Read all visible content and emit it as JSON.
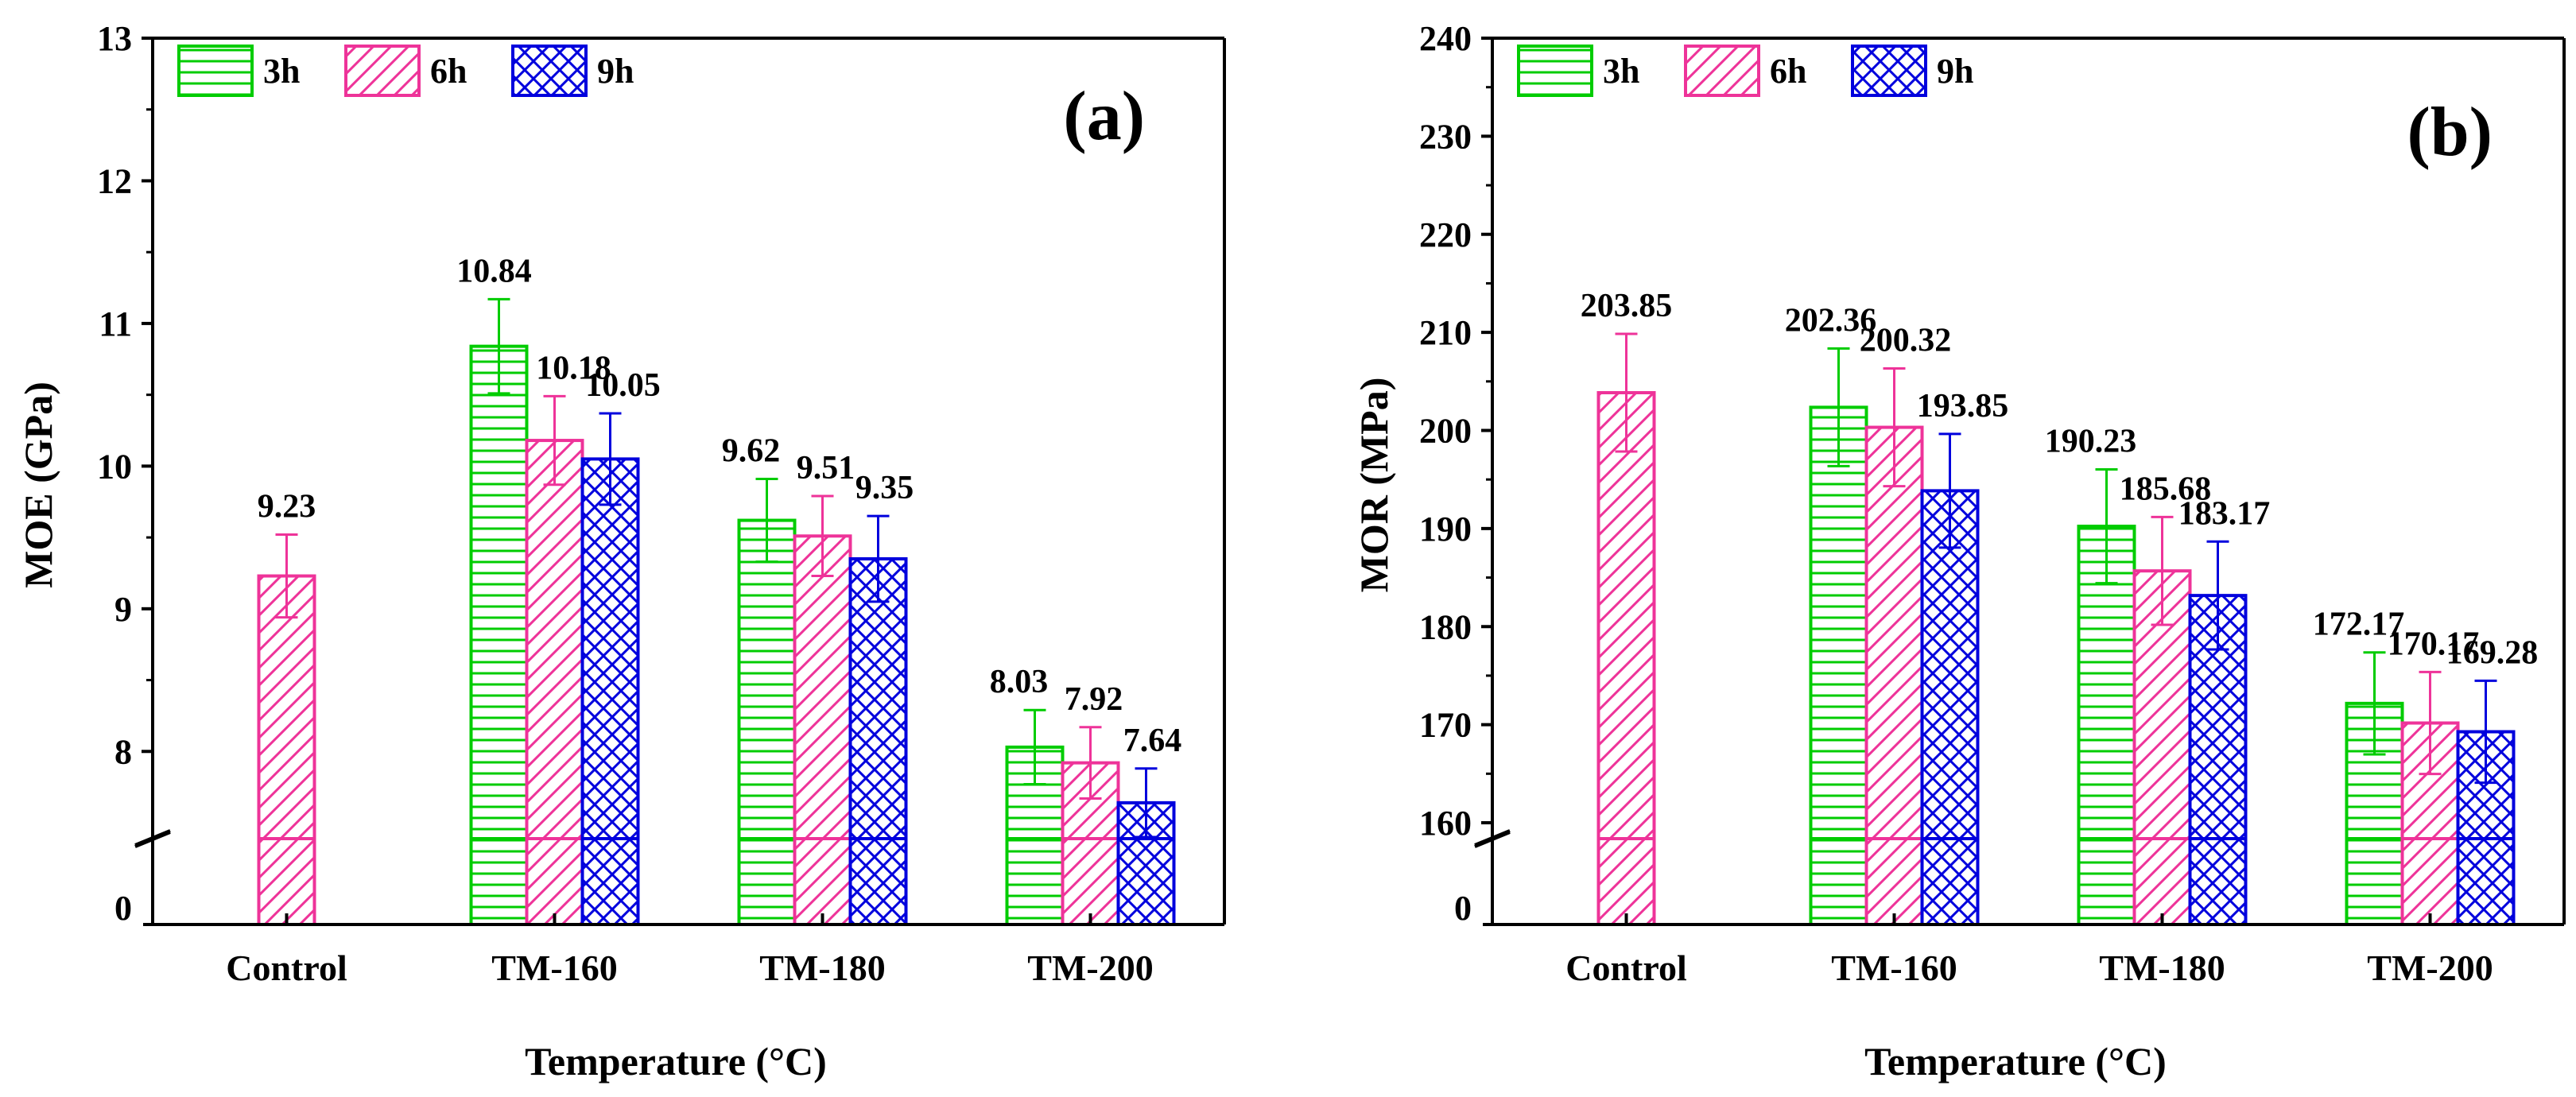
{
  "chart_data": [
    {
      "type": "bar",
      "panel_label": "(a)",
      "xlabel": "Temperature (°C)",
      "ylabel": "MOE (GPa)",
      "categories": [
        "Control",
        "TM-160",
        "TM-180",
        "TM-200"
      ],
      "series": [
        {
          "name": "3h",
          "color": "#00cc00",
          "pattern": "horizontal-lines",
          "values": [
            null,
            10.84,
            9.62,
            8.03
          ],
          "errors": [
            null,
            0.33,
            0.29,
            0.26
          ],
          "labels": [
            null,
            "10.84",
            "9.62",
            "8.03"
          ]
        },
        {
          "name": "6h",
          "color": "#ee3399",
          "pattern": "diagonal-lines",
          "values": [
            9.23,
            10.18,
            9.51,
            7.92
          ],
          "errors": [
            0.29,
            0.31,
            0.28,
            0.25
          ],
          "labels": [
            "9.23",
            "10.18",
            "9.51",
            "7.92"
          ]
        },
        {
          "name": "9h",
          "color": "#0000dd",
          "pattern": "crosshatch",
          "values": [
            null,
            10.05,
            9.35,
            7.64
          ],
          "errors": [
            null,
            0.32,
            0.3,
            0.24
          ],
          "labels": [
            null,
            "10.05",
            "9.35",
            "7.64"
          ]
        }
      ],
      "yticks": [
        "0",
        "8",
        "9",
        "10",
        "11",
        "12",
        "13"
      ],
      "axis_break": {
        "lower": 0,
        "upper": 7.5
      },
      "ylim": [
        7.5,
        13
      ],
      "legend": "top-left",
      "grid": false
    },
    {
      "type": "bar",
      "panel_label": "(b)",
      "xlabel": "Temperature (°C)",
      "ylabel": "MOR (MPa)",
      "categories": [
        "Control",
        "TM-160",
        "TM-180",
        "TM-200"
      ],
      "series": [
        {
          "name": "3h",
          "color": "#00cc00",
          "pattern": "horizontal-lines",
          "values": [
            null,
            202.36,
            190.23,
            172.17
          ],
          "errors": [
            null,
            6.0,
            5.8,
            5.2
          ],
          "labels": [
            null,
            "202.36",
            "190.23",
            "172.17"
          ]
        },
        {
          "name": "6h",
          "color": "#ee3399",
          "pattern": "diagonal-lines",
          "values": [
            203.85,
            200.32,
            185.68,
            170.17
          ],
          "errors": [
            6.0,
            6.0,
            5.5,
            5.2
          ],
          "labels": [
            "203.85",
            "200.32",
            "185.68",
            "170.17"
          ]
        },
        {
          "name": "9h",
          "color": "#0000dd",
          "pattern": "crosshatch",
          "values": [
            null,
            193.85,
            183.17,
            169.28
          ],
          "errors": [
            null,
            5.8,
            5.5,
            5.2
          ],
          "labels": [
            null,
            "193.85",
            "183.17",
            "169.28"
          ]
        }
      ],
      "yticks": [
        "0",
        "160",
        "170",
        "180",
        "190",
        "200",
        "210",
        "220",
        "230",
        "240"
      ],
      "axis_break": {
        "lower": 0,
        "upper": 160
      },
      "ylim": [
        160,
        240
      ],
      "legend": "top-left",
      "grid": false
    }
  ]
}
